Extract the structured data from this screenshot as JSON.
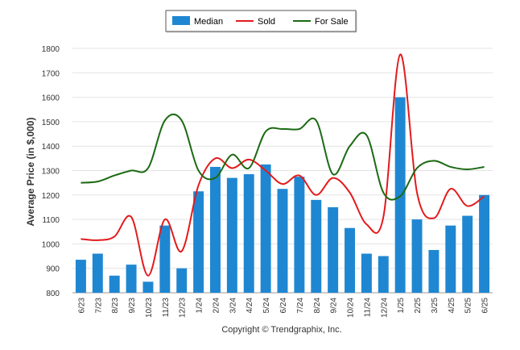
{
  "chart_data": {
    "type": "bar",
    "categories": [
      "6/23",
      "7/23",
      "8/23",
      "9/23",
      "10/23",
      "11/23",
      "12/23",
      "1/24",
      "2/24",
      "3/24",
      "4/24",
      "5/24",
      "6/24",
      "7/24",
      "8/24",
      "9/24",
      "10/24",
      "11/24",
      "12/24",
      "1/25",
      "2/25",
      "3/25",
      "4/25",
      "5/25",
      "6/25"
    ],
    "series": [
      {
        "name": "Median",
        "kind": "bar",
        "color": "#1f87d2",
        "values": [
          935,
          960,
          870,
          915,
          845,
          1075,
          900,
          1215,
          1315,
          1270,
          1285,
          1325,
          1225,
          1275,
          1180,
          1150,
          1065,
          960,
          950,
          1600,
          1100,
          975,
          1075,
          1115,
          1200
        ]
      },
      {
        "name": "Sold",
        "kind": "line",
        "color": "#e31a1c",
        "values": [
          1020,
          1015,
          1030,
          1110,
          870,
          1100,
          970,
          1240,
          1350,
          1310,
          1345,
          1300,
          1245,
          1280,
          1200,
          1270,
          1210,
          1080,
          1110,
          1775,
          1210,
          1105,
          1225,
          1155,
          1195
        ]
      },
      {
        "name": "For Sale",
        "kind": "line",
        "color": "#1b6a13",
        "values": [
          1250,
          1255,
          1280,
          1300,
          1310,
          1505,
          1505,
          1300,
          1270,
          1365,
          1310,
          1460,
          1470,
          1470,
          1505,
          1285,
          1400,
          1445,
          1210,
          1195,
          1310,
          1340,
          1315,
          1305,
          1315
        ]
      }
    ],
    "ylabel": "Average Price (in $,000)",
    "ylim": [
      800,
      1800
    ],
    "yticks": [
      800,
      900,
      1000,
      1100,
      1200,
      1300,
      1400,
      1500,
      1600,
      1700,
      1800
    ],
    "grid": true,
    "legend": "top-center"
  },
  "footer": {
    "copyright": "Copyright © Trendgraphix, Inc."
  }
}
